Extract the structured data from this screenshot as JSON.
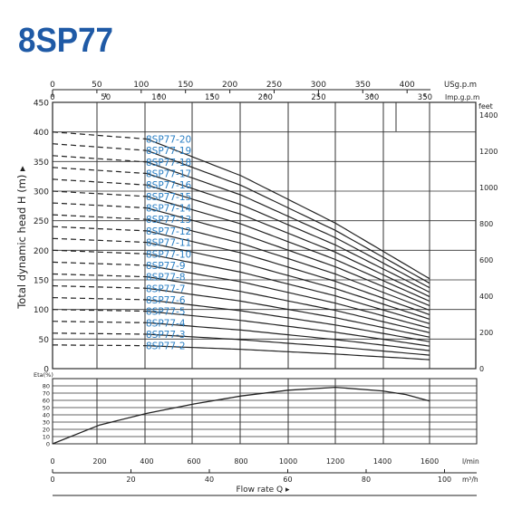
{
  "title": "8SP77",
  "chart_data": [
    {
      "type": "line",
      "title": "8SP77",
      "xlabel": "Flow rate  Q",
      "ylabel": "Total dynamic head H (m)",
      "x_unit": "l/min",
      "xlim": [
        0,
        1600
      ],
      "ylim": [
        0,
        450
      ],
      "grid": true,
      "x_ticks": [
        0,
        200,
        400,
        600,
        800,
        1000,
        1200,
        1400,
        1600
      ],
      "y_ticks": [
        0,
        50,
        100,
        150,
        200,
        250,
        300,
        350,
        400,
        450
      ],
      "secondary_axes": {
        "usgpm": {
          "label": "USg.p.m",
          "ticks": [
            "0",
            "50",
            "100",
            "150",
            "200",
            "250",
            "300",
            "350",
            "400"
          ]
        },
        "impgpm": {
          "label": "Imp.g.p.m",
          "ticks": [
            "0",
            "50",
            "100",
            "150",
            "200",
            "250",
            "300",
            "350"
          ]
        },
        "feet": {
          "label": "feet",
          "ticks": [
            "0",
            "200",
            "400",
            "600",
            "800",
            "1000",
            "1200",
            "1400"
          ]
        },
        "m3h": {
          "label": "m³/h",
          "ticks": [
            "0",
            "20",
            "40",
            "60",
            "80",
            "100"
          ]
        }
      },
      "head_curve_stages": [
        2,
        3,
        4,
        5,
        6,
        7,
        8,
        9,
        10,
        11,
        12,
        13,
        14,
        15,
        16,
        17,
        18,
        19,
        20
      ],
      "head_curve_shape": {
        "x": [
          0,
          400,
          800,
          1200,
          1600
        ],
        "head_per_stage_m": [
          20.0,
          19.4,
          16.3,
          12.3,
          7.6
        ],
        "dashed_until_x": 400
      },
      "series": [
        {
          "name": "8SP77-20",
          "label": "8SP77-20"
        },
        {
          "name": "8SP77-19",
          "label": "8SP77-19"
        },
        {
          "name": "8SP77-18",
          "label": "8SP77-18"
        },
        {
          "name": "8SP77-17",
          "label": "8SP77-17"
        },
        {
          "name": "8SP77-16",
          "label": "8SP77-16"
        },
        {
          "name": "8SP77-15",
          "label": "8SP77-15"
        },
        {
          "name": "8SP77-14",
          "label": "8SP77-14"
        },
        {
          "name": "8SP77-13",
          "label": "8SP77-13"
        },
        {
          "name": "8SP77-12",
          "label": "8SP77-12"
        },
        {
          "name": "8SP77-11",
          "label": "8SP77-11"
        },
        {
          "name": "8SP77-10",
          "label": "8SP77-10"
        },
        {
          "name": "8SP77-9",
          "label": "8SP77-9"
        },
        {
          "name": "8SP77-8",
          "label": "8SP77-8"
        },
        {
          "name": "8SP77-7",
          "label": "8SP77-7"
        },
        {
          "name": "8SP77-6",
          "label": "8SP77-6"
        },
        {
          "name": "8SP77-5",
          "label": "8SP77-5"
        },
        {
          "name": "8SP77-4",
          "label": "8SP77-4"
        },
        {
          "name": "8SP77-3",
          "label": "8SP77-3"
        },
        {
          "name": "8SP77-2",
          "label": "8SP77-2"
        }
      ],
      "label_color": "#2a7fc4",
      "line_color": "#222222"
    },
    {
      "type": "line",
      "ylabel": "Eta(%)",
      "xlim": [
        0,
        1600
      ],
      "ylim": [
        0,
        90
      ],
      "y_ticks": [
        0,
        10,
        20,
        30,
        40,
        50,
        60,
        70,
        80
      ],
      "grid": true,
      "series": [
        {
          "x": [
            0,
            200,
            400,
            600,
            800,
            1000,
            1200,
            1400,
            1500,
            1600
          ],
          "y": [
            0,
            26,
            42,
            55,
            66,
            74,
            78,
            73,
            68,
            59
          ]
        }
      ]
    }
  ]
}
